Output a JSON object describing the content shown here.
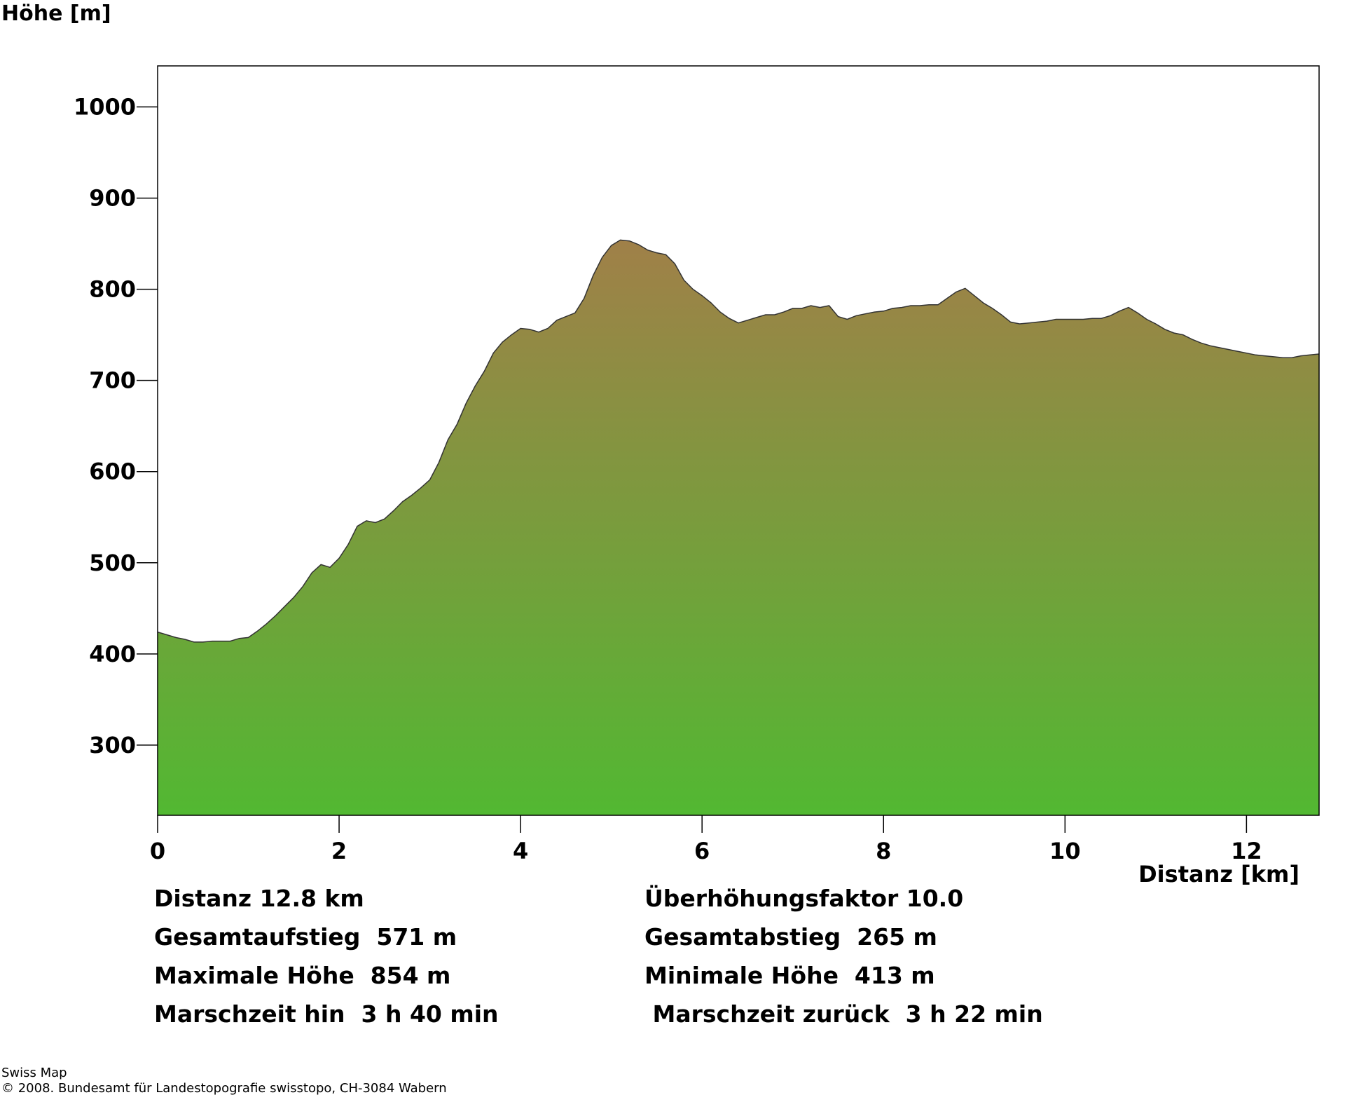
{
  "chart_data": {
    "type": "area",
    "ylabel": "Höhe [m]",
    "xlabel": "Distanz [km]",
    "xlim": [
      0,
      12.8
    ],
    "ylim": [
      223,
      1045
    ],
    "xticks": [
      0,
      2,
      4,
      6,
      8,
      10,
      12
    ],
    "yticks": [
      300,
      400,
      500,
      600,
      700,
      800,
      900,
      1000
    ],
    "colors": {
      "fill_top": "#a08048",
      "fill_bottom": "#52b832",
      "outline": "#333333"
    },
    "x": [
      0,
      0.1,
      0.2,
      0.3,
      0.4,
      0.5,
      0.6,
      0.7,
      0.8,
      0.9,
      1.0,
      1.1,
      1.2,
      1.3,
      1.4,
      1.5,
      1.6,
      1.7,
      1.8,
      1.9,
      2.0,
      2.1,
      2.2,
      2.3,
      2.4,
      2.5,
      2.6,
      2.7,
      2.8,
      2.9,
      3.0,
      3.1,
      3.2,
      3.3,
      3.4,
      3.5,
      3.6,
      3.7,
      3.8,
      3.9,
      4.0,
      4.1,
      4.2,
      4.3,
      4.4,
      4.5,
      4.6,
      4.7,
      4.8,
      4.9,
      5.0,
      5.1,
      5.2,
      5.3,
      5.4,
      5.5,
      5.6,
      5.7,
      5.8,
      5.9,
      6.0,
      6.1,
      6.2,
      6.3,
      6.4,
      6.5,
      6.6,
      6.7,
      6.8,
      6.9,
      7.0,
      7.1,
      7.2,
      7.3,
      7.4,
      7.5,
      7.6,
      7.7,
      7.8,
      7.9,
      8.0,
      8.1,
      8.2,
      8.3,
      8.4,
      8.5,
      8.6,
      8.7,
      8.8,
      8.9,
      9.0,
      9.1,
      9.2,
      9.3,
      9.4,
      9.5,
      9.6,
      9.7,
      9.8,
      9.9,
      10.0,
      10.1,
      10.2,
      10.3,
      10.4,
      10.5,
      10.6,
      10.7,
      10.8,
      10.9,
      11.0,
      11.1,
      11.2,
      11.3,
      11.4,
      11.5,
      11.6,
      11.7,
      11.8,
      11.9,
      12.0,
      12.1,
      12.2,
      12.3,
      12.4,
      12.5,
      12.6,
      12.7,
      12.8
    ],
    "y": [
      424,
      421,
      418,
      416,
      413,
      413,
      414,
      414,
      414,
      417,
      418,
      425,
      433,
      442,
      452,
      462,
      474,
      489,
      498,
      495,
      505,
      520,
      540,
      546,
      544,
      548,
      557,
      567,
      574,
      582,
      591,
      610,
      635,
      652,
      675,
      694,
      710,
      730,
      742,
      750,
      757,
      756,
      753,
      757,
      766,
      770,
      774,
      790,
      815,
      835,
      848,
      854,
      853,
      849,
      843,
      840,
      838,
      828,
      810,
      800,
      793,
      785,
      775,
      768,
      763,
      766,
      769,
      772,
      772,
      775,
      779,
      779,
      782,
      780,
      782,
      770,
      767,
      771,
      773,
      775,
      776,
      779,
      780,
      782,
      782,
      783,
      783,
      790,
      797,
      801,
      793,
      785,
      779,
      772,
      764,
      762,
      763,
      764,
      765,
      767,
      767,
      767,
      767,
      768,
      768,
      771,
      776,
      780,
      774,
      767,
      762,
      756,
      752,
      750,
      745,
      741,
      738,
      736,
      734,
      732,
      730,
      728,
      727,
      726,
      725,
      725,
      727,
      728,
      729
    ]
  },
  "stats": [
    {
      "left": "Distanz 12.8 km",
      "right": "Überhöhungsfaktor 10.0"
    },
    {
      "left": "Gesamtaufstieg  571 m",
      "right": "Gesamtabstieg  265 m"
    },
    {
      "left": "Maximale Höhe  854 m",
      "right": "Minimale Höhe  413 m"
    },
    {
      "left": "Marschzeit hin  3 h 40 min",
      "right": " Marschzeit zurück  3 h 22 min"
    }
  ],
  "footer": {
    "line1": "Swiss Map",
    "line2": "© 2008. Bundesamt für Landestopografie swisstopo, CH-3084 Wabern"
  }
}
